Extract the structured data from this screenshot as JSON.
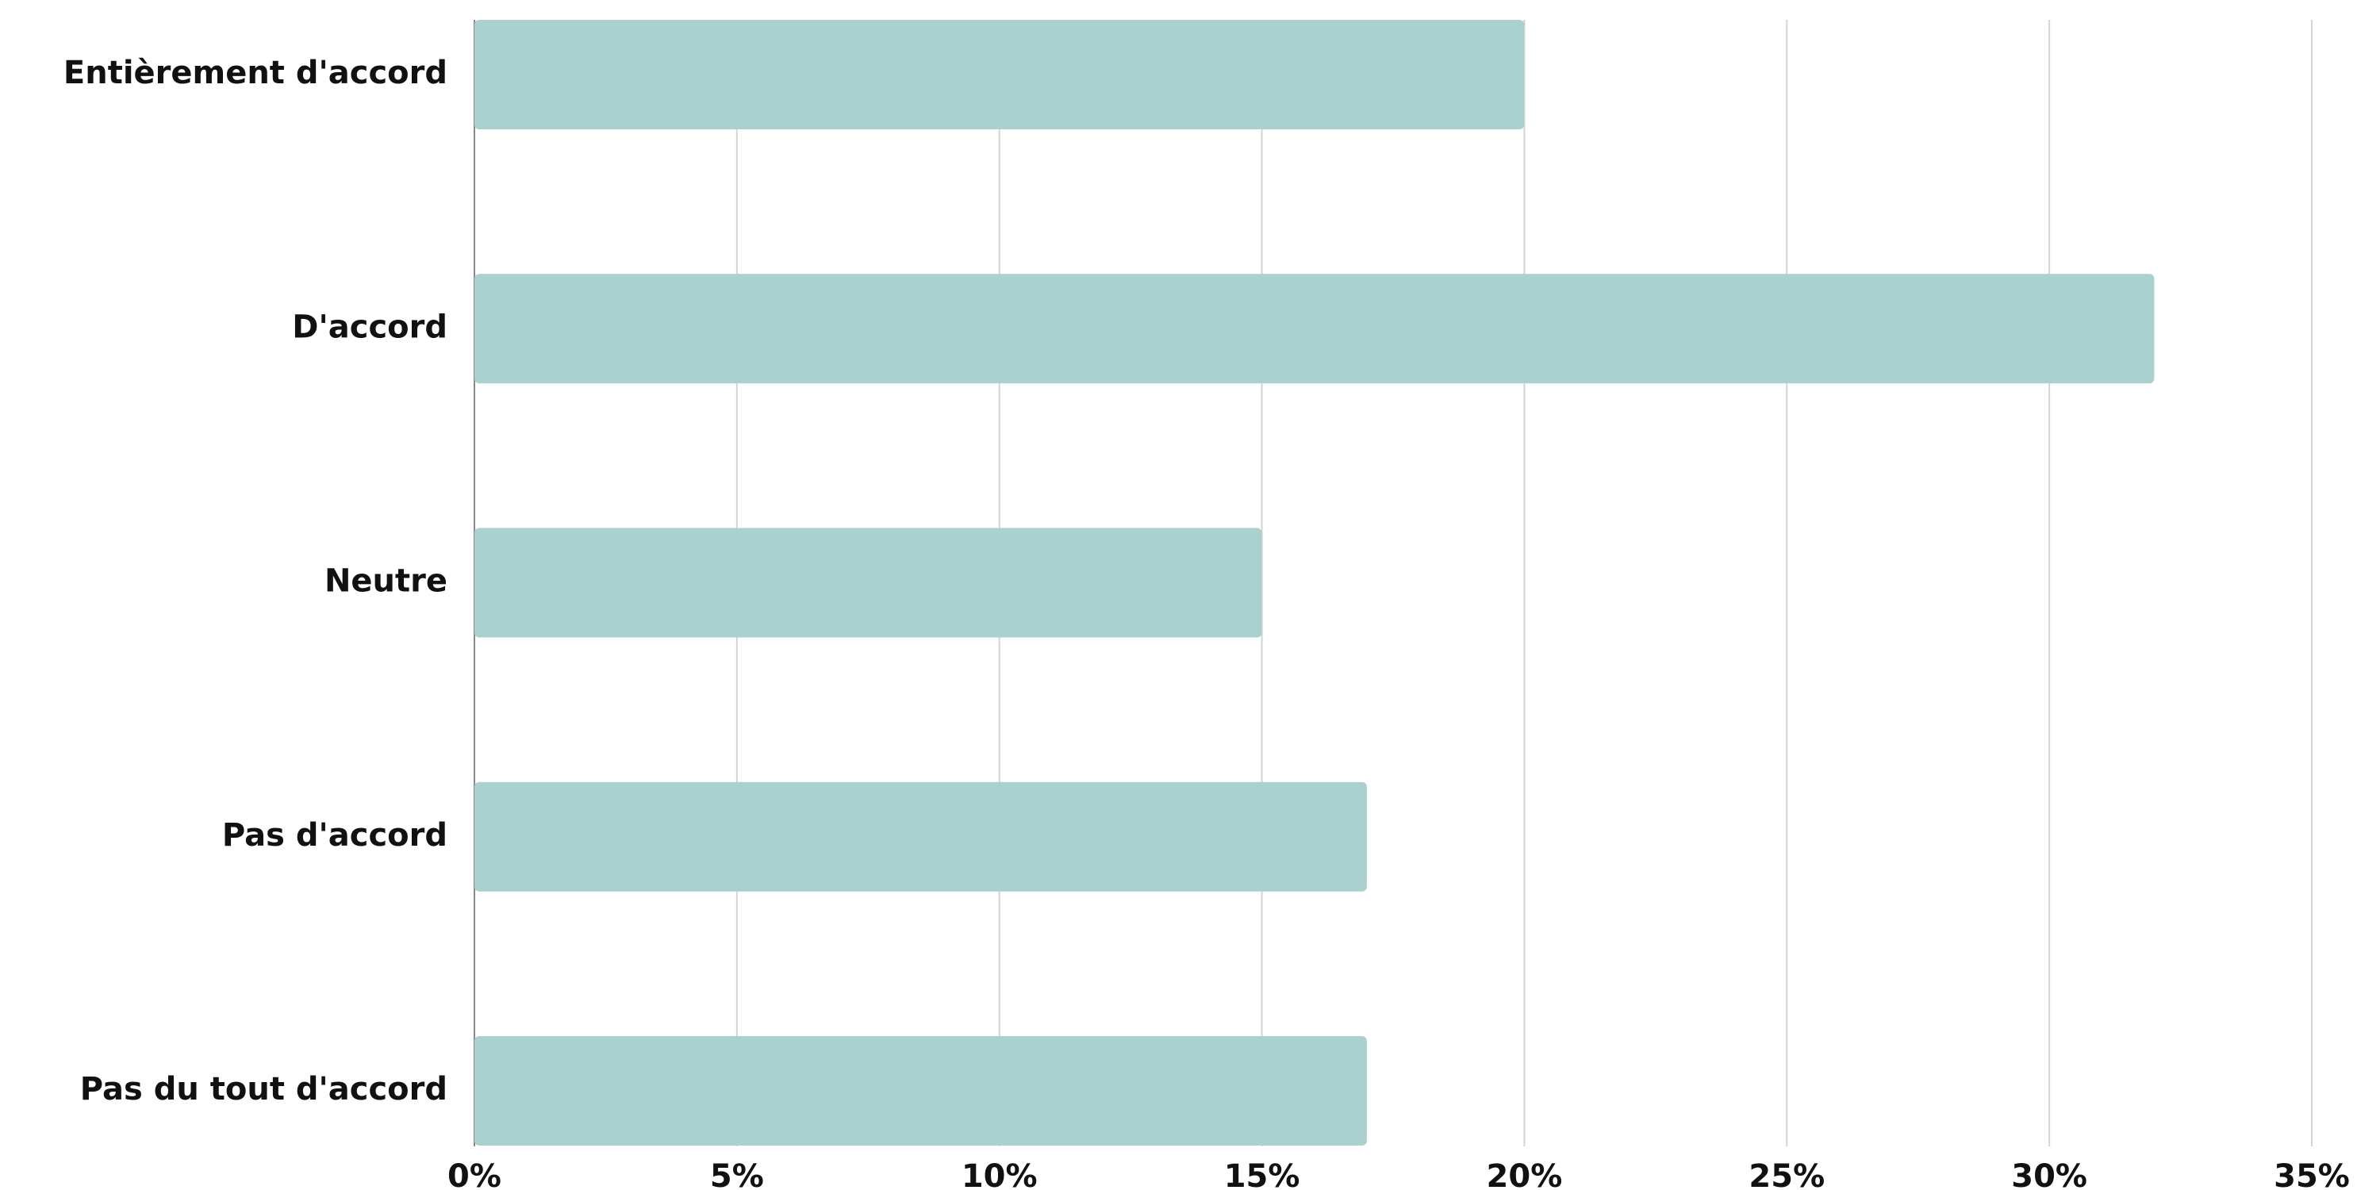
{
  "chart_data": {
    "type": "bar",
    "orientation": "horizontal",
    "categories": [
      "Entièrement d'accord",
      "D'accord",
      "Neutre",
      "Pas d'accord",
      "Pas du tout d'accord"
    ],
    "values": [
      20,
      32,
      15,
      17,
      17
    ],
    "color": "#aad1cd",
    "xlim": [
      0,
      35
    ],
    "xticks": [
      {
        "value": 0,
        "label": "0%"
      },
      {
        "value": 5,
        "label": "5%"
      },
      {
        "value": 10,
        "label": "10%"
      },
      {
        "value": 15,
        "label": "15%"
      },
      {
        "value": 20,
        "label": "20%"
      },
      {
        "value": 25,
        "label": "25%"
      },
      {
        "value": 30,
        "label": "30%"
      },
      {
        "value": 35,
        "label": "35%"
      }
    ],
    "grid": true
  }
}
